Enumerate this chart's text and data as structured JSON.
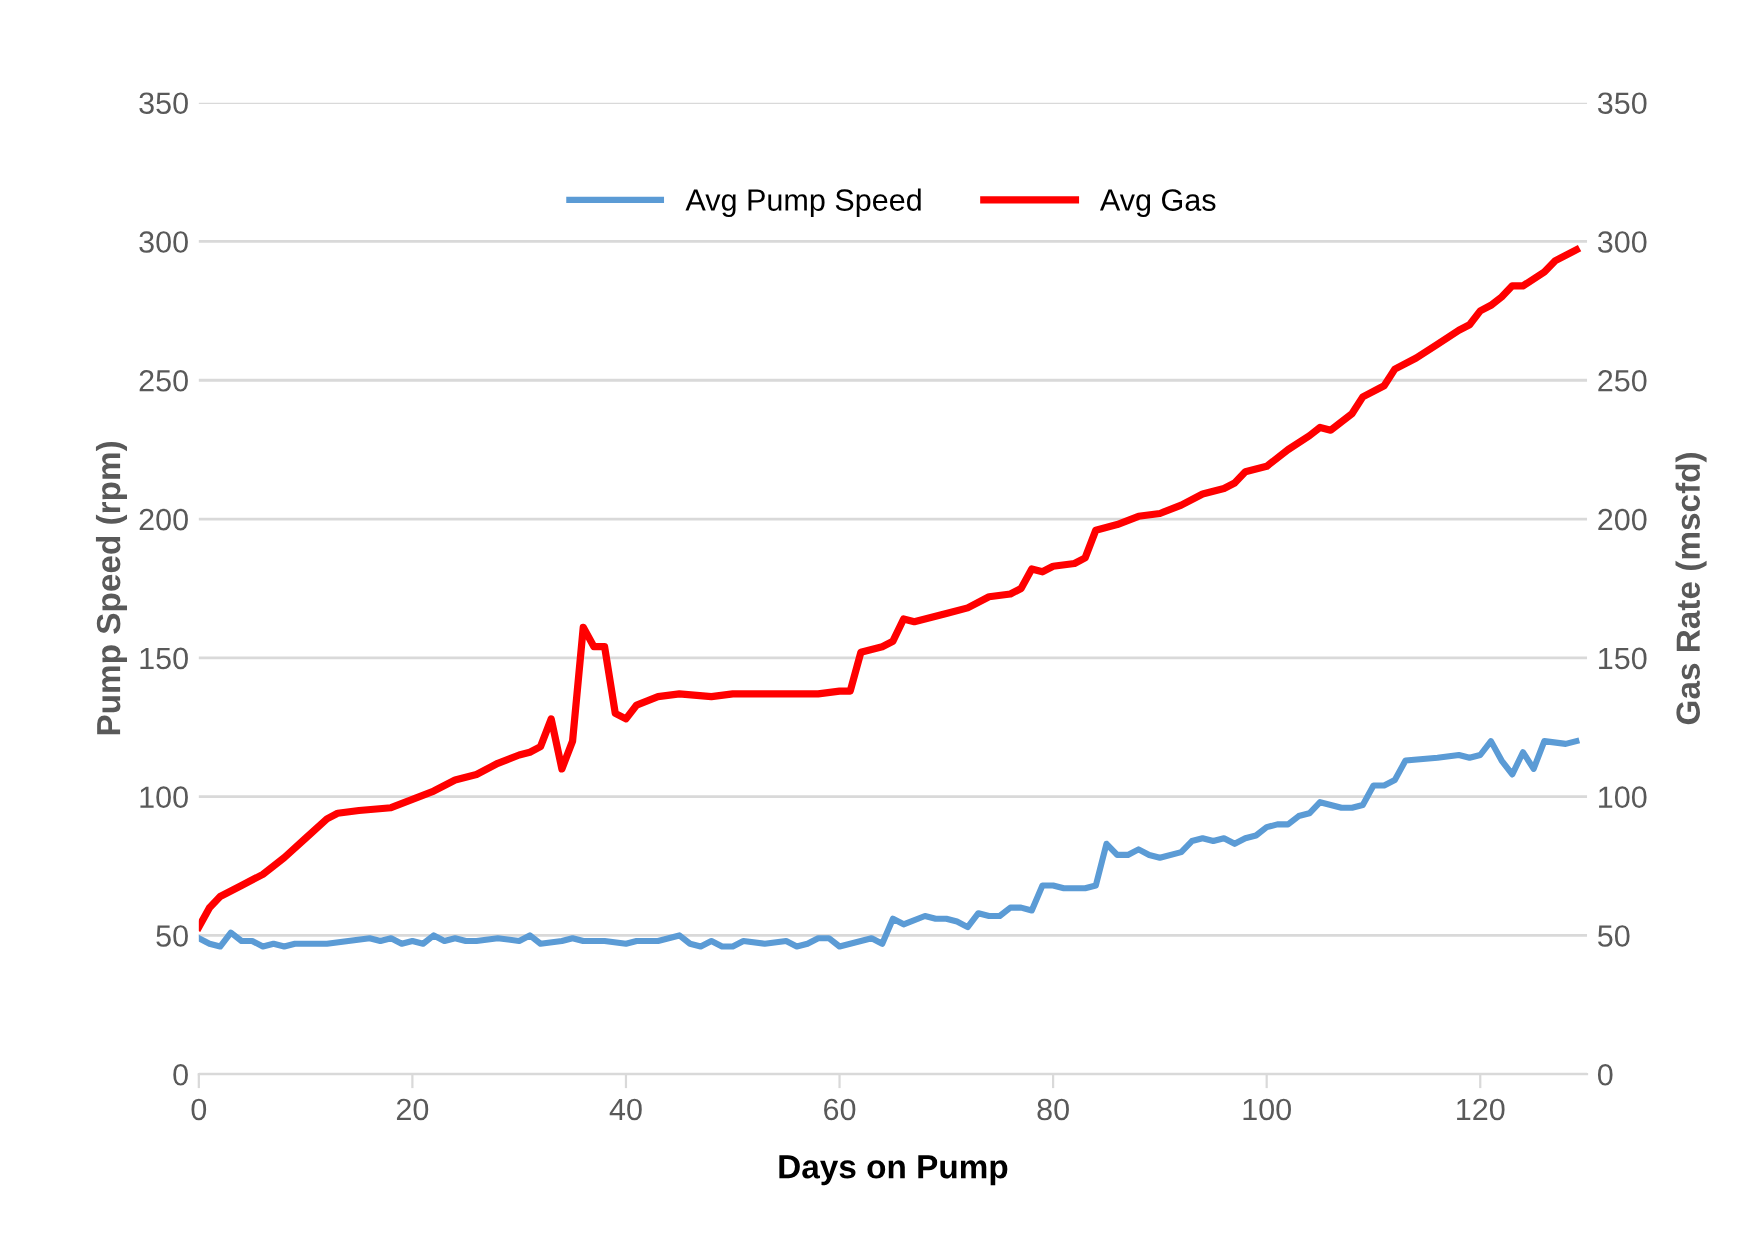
{
  "chart_data": {
    "type": "line",
    "xlabel": "Days on Pump",
    "ylabel": "Pump Speed (rpm)",
    "y2label": "Gas Rate (mscfd)",
    "xlim": [
      0,
      130
    ],
    "xticks": [
      0,
      20,
      40,
      60,
      80,
      100,
      120
    ],
    "ylim": [
      0,
      350
    ],
    "yticks": [
      0,
      50,
      100,
      150,
      200,
      250,
      300,
      350
    ],
    "y2lim": [
      0,
      350
    ],
    "y2ticks": [
      0,
      50,
      100,
      150,
      200,
      250,
      300,
      350
    ],
    "grid": "y",
    "legend": "top",
    "marker": "none",
    "line_style": "solid",
    "series": [
      {
        "name": "Avg Pump Speed",
        "color": "#5b9bd5",
        "axis": "y",
        "x": [
          0,
          1,
          2,
          3,
          4,
          5,
          6,
          7,
          8,
          9,
          12,
          14,
          16,
          17,
          18,
          19,
          20,
          21,
          22,
          23,
          24,
          25,
          26,
          28,
          30,
          31,
          32,
          34,
          35,
          36,
          38,
          40,
          41,
          43,
          44,
          45,
          46,
          47,
          48,
          49,
          50,
          51,
          53,
          55,
          56,
          57,
          58,
          59,
          60,
          62,
          63,
          64,
          65,
          66,
          68,
          69,
          70,
          71,
          72,
          73,
          74,
          75,
          76,
          77,
          78,
          79,
          80,
          81,
          83,
          84,
          85,
          86,
          87,
          88,
          89,
          90,
          92,
          93,
          94,
          95,
          96,
          97,
          98,
          99,
          100,
          101,
          102,
          103,
          104,
          105,
          106,
          107,
          108,
          109,
          110,
          111,
          112,
          113,
          116,
          118,
          119,
          120,
          121,
          122,
          123,
          124,
          125,
          126,
          128,
          129
        ],
        "values": [
          49,
          47,
          46,
          51,
          48,
          48,
          46,
          47,
          46,
          47,
          47,
          48,
          49,
          48,
          49,
          47,
          48,
          47,
          50,
          48,
          49,
          48,
          48,
          49,
          48,
          50,
          47,
          48,
          49,
          48,
          48,
          47,
          48,
          48,
          49,
          50,
          47,
          46,
          48,
          46,
          46,
          48,
          47,
          48,
          46,
          47,
          49,
          49,
          46,
          48,
          49,
          47,
          56,
          54,
          57,
          56,
          56,
          55,
          53,
          58,
          57,
          57,
          60,
          60,
          59,
          68,
          68,
          67,
          67,
          68,
          83,
          79,
          79,
          81,
          79,
          78,
          80,
          84,
          85,
          84,
          85,
          83,
          85,
          86,
          89,
          90,
          90,
          93,
          94,
          98,
          97,
          96,
          96,
          97,
          104,
          104,
          106,
          113,
          114,
          115,
          114,
          115,
          120,
          113,
          108,
          116,
          110,
          120,
          119,
          120
        ]
      },
      {
        "name": "Avg Gas",
        "color": "#ff0000",
        "axis": "y2",
        "x": [
          0,
          1,
          2,
          4,
          6,
          8,
          10,
          12,
          13,
          15,
          18,
          20,
          22,
          24,
          26,
          28,
          30,
          31,
          32,
          33,
          34,
          35,
          36,
          37,
          38,
          39,
          40,
          41,
          43,
          45,
          48,
          50,
          52,
          55,
          58,
          60,
          61,
          62,
          64,
          65,
          66,
          67,
          70,
          72,
          74,
          76,
          77,
          78,
          79,
          80,
          82,
          83,
          84,
          86,
          88,
          90,
          92,
          94,
          96,
          97,
          98,
          100,
          102,
          104,
          105,
          106,
          108,
          109,
          111,
          112,
          114,
          116,
          118,
          119,
          120,
          121,
          122,
          123,
          124,
          126,
          127,
          129
        ],
        "values": [
          53,
          60,
          64,
          68,
          72,
          78,
          85,
          92,
          94,
          95,
          96,
          99,
          102,
          106,
          108,
          112,
          115,
          116,
          118,
          128,
          110,
          120,
          161,
          154,
          154,
          130,
          128,
          133,
          136,
          137,
          136,
          137,
          137,
          137,
          137,
          138,
          138,
          152,
          154,
          156,
          164,
          163,
          166,
          168,
          172,
          173,
          175,
          182,
          181,
          183,
          184,
          186,
          196,
          198,
          201,
          202,
          205,
          209,
          211,
          213,
          217,
          219,
          225,
          230,
          233,
          232,
          238,
          244,
          248,
          254,
          258,
          263,
          268,
          270,
          275,
          277,
          280,
          284,
          284,
          289,
          293,
          297
        ]
      }
    ]
  }
}
